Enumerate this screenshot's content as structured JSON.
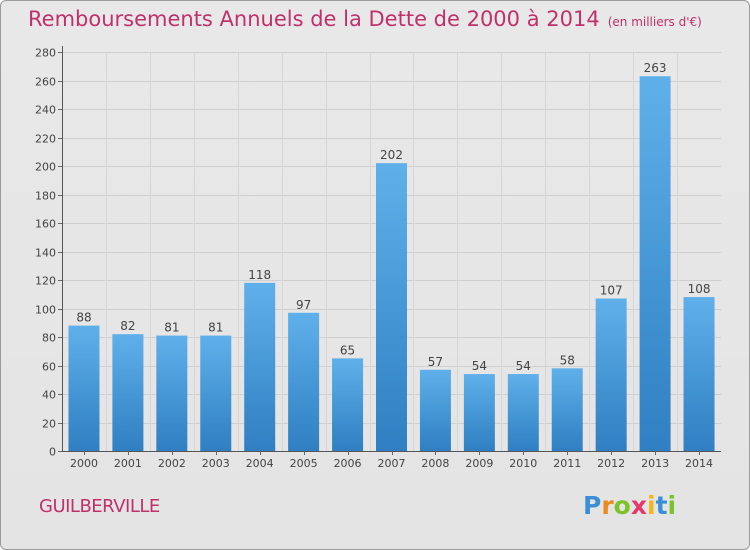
{
  "chart_data": {
    "type": "bar",
    "title": "Remboursements Annuels de la Dette de 2000 à 2014",
    "unit_note": "(en milliers d'€)",
    "categories": [
      "2000",
      "2001",
      "2002",
      "2003",
      "2004",
      "2005",
      "2006",
      "2007",
      "2008",
      "2009",
      "2010",
      "2011",
      "2012",
      "2013",
      "2014"
    ],
    "values": [
      88,
      82,
      81,
      81,
      118,
      97,
      65,
      202,
      57,
      54,
      54,
      58,
      107,
      263,
      108
    ],
    "ylim": [
      0,
      280
    ],
    "yticks": [
      0,
      20,
      40,
      60,
      80,
      100,
      120,
      140,
      160,
      180,
      200,
      220,
      240,
      260,
      280
    ],
    "grid": true,
    "colors": {
      "bar_top": "#5fb0ea",
      "bar_bottom": "#2f7fc2",
      "title": "#c0306a"
    }
  },
  "city": "GUILBERVILLE",
  "brand": {
    "letters": [
      "P",
      "r",
      "o",
      "x",
      "i",
      "t",
      "i"
    ],
    "colors": [
      "#3a8fd6",
      "#e98b1b",
      "#7cc22b",
      "#e23b6b",
      "#f2b61f",
      "#3a8fd6",
      "#7cc22b"
    ]
  }
}
